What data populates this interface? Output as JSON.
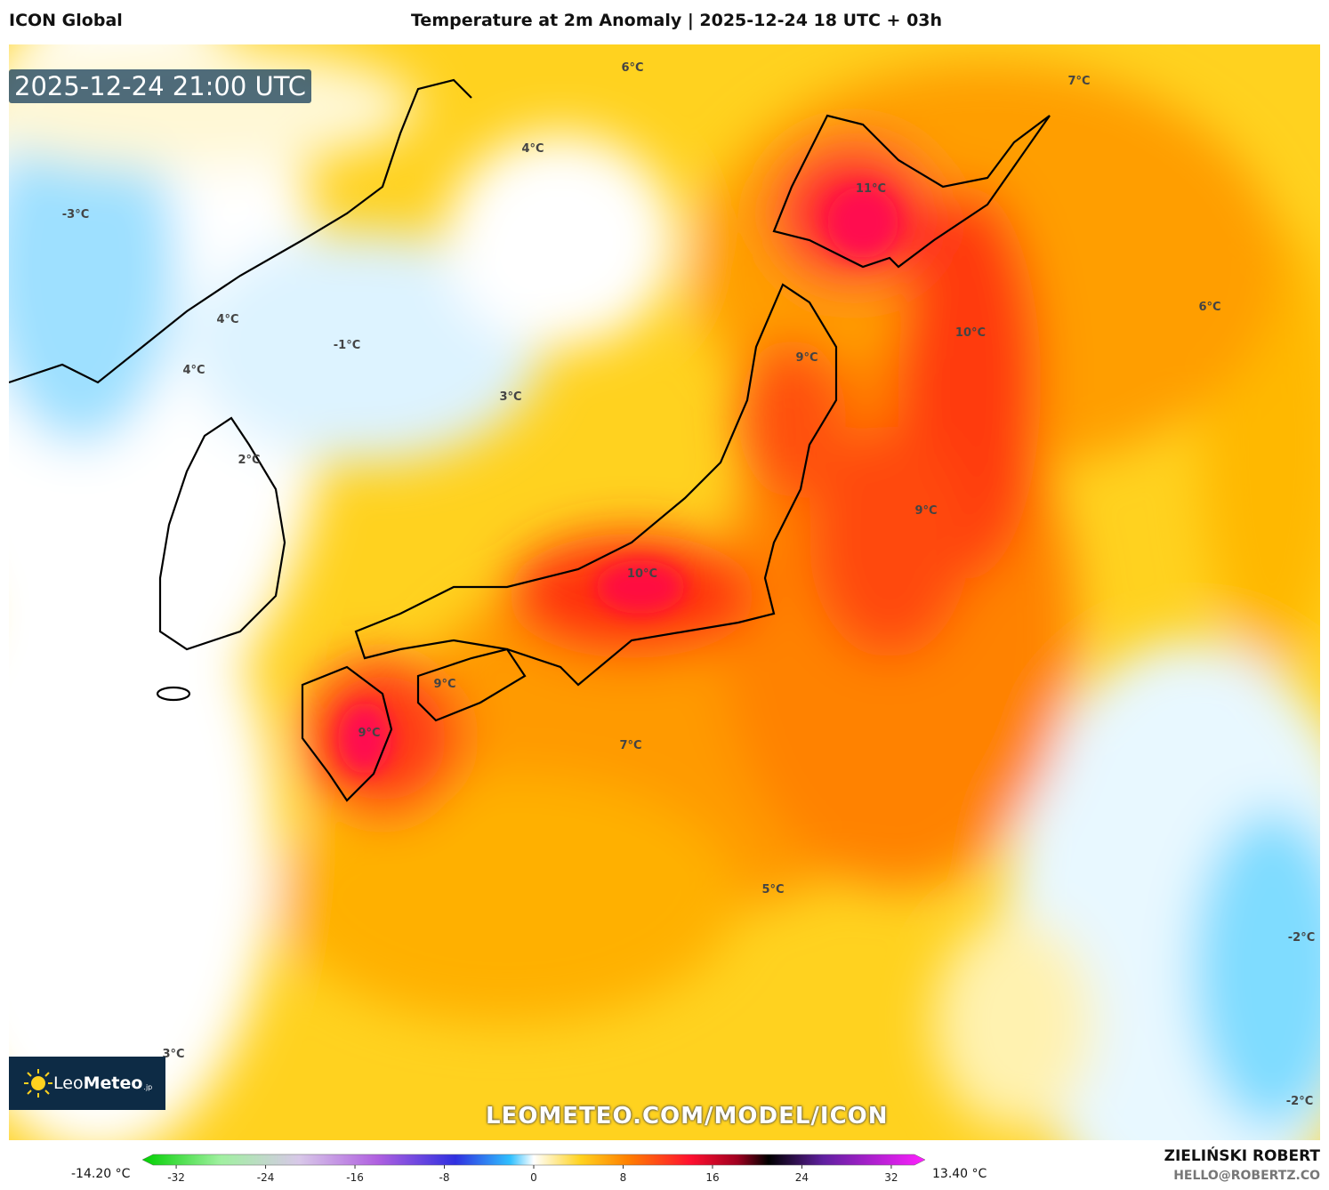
{
  "header": {
    "model": "ICON Global",
    "title": "Temperature at 2m Anomaly | 2025-12-24 18 UTC + 03h"
  },
  "timestamp": "2025-12-24 21:00 UTC",
  "map_labels": [
    "6°C",
    "7°C",
    "4°C",
    "11°C",
    "-3°C",
    "4°C",
    "-1°C",
    "4°C",
    "3°C",
    "9°C",
    "10°C",
    "6°C",
    "2°C",
    "9°C",
    "10°C",
    "9°C",
    "9°C",
    "7°C",
    "5°C",
    "-2°C",
    "-2°C",
    "3°C"
  ],
  "logo": {
    "name": "Leo",
    "name_bold": "Meteo",
    "suffix": ".jp"
  },
  "watermark": "LEOMETEO.COM/MODEL/ICON",
  "colorbar": {
    "min_label": "-14.20 °C",
    "max_label": "13.40 °C",
    "ticks": [
      -32,
      -24,
      -16,
      -8,
      0,
      8,
      16,
      24,
      32
    ]
  },
  "author": {
    "name": "ZIELIŃSKI ROBERT",
    "email": "HELLO@ROBERTZ.CO"
  }
}
